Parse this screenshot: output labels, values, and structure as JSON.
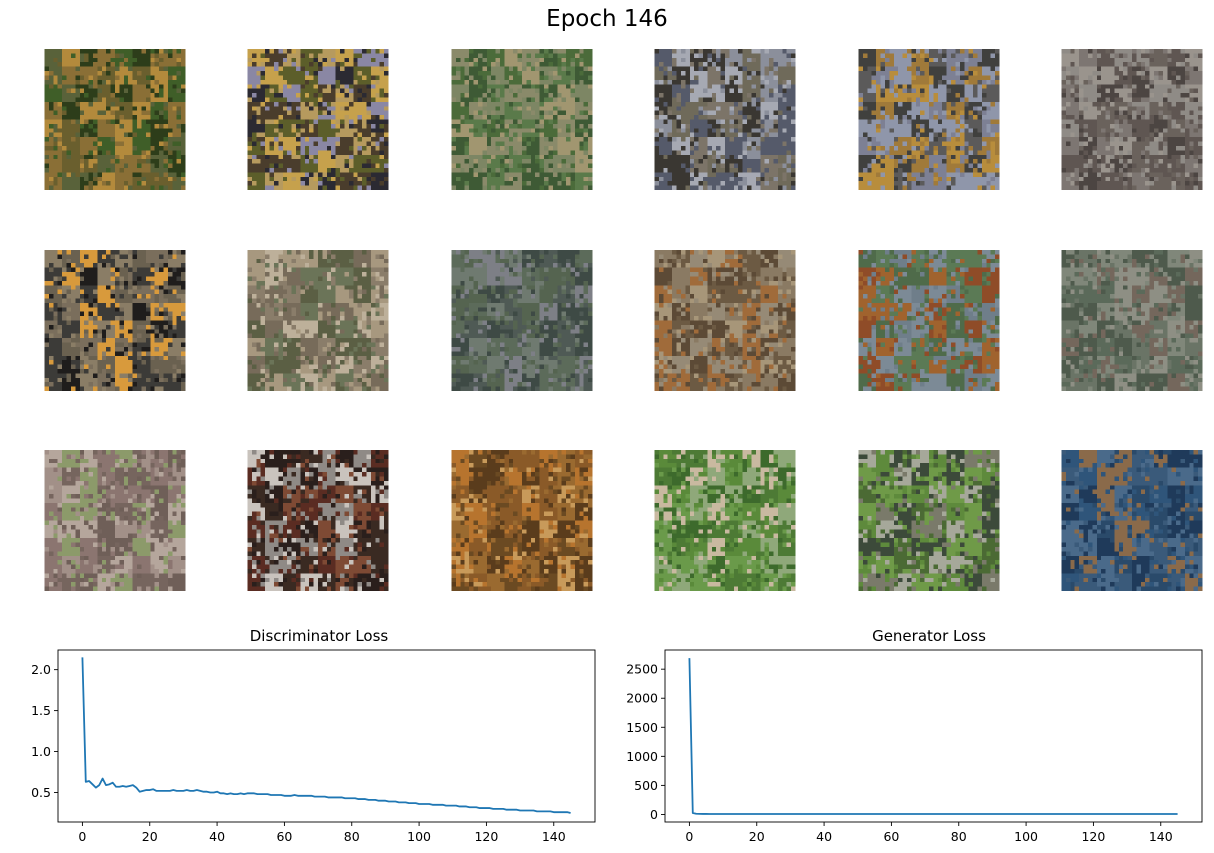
{
  "figure": {
    "title": "Epoch 146"
  },
  "samples": [
    {
      "palette": [
        "#3f5e28",
        "#6a5f2e",
        "#b38a3c",
        "#59623a",
        "#8a6f36",
        "#2d3d1a"
      ]
    },
    {
      "palette": [
        "#4a3d2c",
        "#b69a5e",
        "#c6a14c",
        "#8a87a4",
        "#5c5e2a",
        "#2b2a32"
      ]
    },
    {
      "palette": [
        "#5a7a4a",
        "#8a8a6a",
        "#4b6b3a",
        "#a19670",
        "#7d8664",
        "#3e5a35"
      ]
    },
    {
      "palette": [
        "#555a6a",
        "#8b8f9b",
        "#6f6a5a",
        "#3a3732",
        "#a6a9b3",
        "#7c7468"
      ]
    },
    {
      "palette": [
        "#7d8094",
        "#b88d3c",
        "#5b5a5a",
        "#a07a3a",
        "#8f96aa",
        "#40403e"
      ]
    },
    {
      "palette": [
        "#5f5652",
        "#7d7672",
        "#8f8b86",
        "#6a625c",
        "#9a948d",
        "#4c4542"
      ]
    },
    {
      "palette": [
        "#6a6150",
        "#d89a3c",
        "#3c3b38",
        "#8a7d66",
        "#1f1d1c",
        "#7a6e5c"
      ]
    },
    {
      "palette": [
        "#8a7d6a",
        "#6b7458",
        "#a7987f",
        "#5b5f44",
        "#776b5a",
        "#bdb09a"
      ]
    },
    {
      "palette": [
        "#4f5a55",
        "#5c6b5a",
        "#6f7a70",
        "#3e4a45",
        "#7d7f86",
        "#556450"
      ]
    },
    {
      "palette": [
        "#8a7a63",
        "#a79679",
        "#5c4a36",
        "#6c5a43",
        "#a06b3a",
        "#968a76"
      ]
    },
    {
      "palette": [
        "#6f7e8a",
        "#5b7a55",
        "#8f4c28",
        "#a0632e",
        "#7c8a96",
        "#4f6b4a"
      ]
    },
    {
      "palette": [
        "#6a7466",
        "#80877a",
        "#5b6a5a",
        "#8e8f84",
        "#4e5a4c",
        "#74675c"
      ]
    },
    {
      "palette": [
        "#8b7570",
        "#a29088",
        "#6f5f58",
        "#b5a69c",
        "#76655e",
        "#8c9a6a"
      ]
    },
    {
      "palette": [
        "#3a2a22",
        "#5a2c22",
        "#c9c3bd",
        "#7e4a34",
        "#2a1f1c",
        "#8f8a86"
      ]
    },
    {
      "palette": [
        "#8a5a28",
        "#b7742e",
        "#6b4a22",
        "#c89a5a",
        "#9a6a30",
        "#5a3c1c"
      ]
    },
    {
      "palette": [
        "#5a8a3a",
        "#4d7a35",
        "#6a9a4a",
        "#3d6a2c",
        "#8fa87a",
        "#c9b9a0"
      ]
    },
    {
      "palette": [
        "#5e8a3c",
        "#6f9a48",
        "#3c4a3a",
        "#7a7a6a",
        "#4b6a34",
        "#a6a89a"
      ]
    },
    {
      "palette": [
        "#2a4a6a",
        "#3a5a7a",
        "#1f3a5a",
        "#4a6a8a",
        "#2f557a",
        "#8a6a4a"
      ]
    }
  ],
  "chart_data": [
    {
      "type": "line",
      "title": "Discriminator Loss",
      "xlabel": "",
      "ylabel": "",
      "xlim": [
        -7.25,
        152.25
      ],
      "ylim": [
        0.14,
        2.24
      ],
      "xticks": [
        0,
        20,
        40,
        60,
        80,
        100,
        120,
        140
      ],
      "yticks": [
        0.5,
        1.0,
        1.5,
        2.0
      ],
      "ytick_labels": [
        "0.5",
        "1.0",
        "1.5",
        "2.0"
      ],
      "line_color": "#1f77b4",
      "x_start": 0,
      "values": [
        2.15,
        0.63,
        0.64,
        0.6,
        0.56,
        0.59,
        0.67,
        0.59,
        0.6,
        0.62,
        0.57,
        0.57,
        0.58,
        0.57,
        0.58,
        0.59,
        0.56,
        0.51,
        0.52,
        0.53,
        0.53,
        0.54,
        0.52,
        0.52,
        0.52,
        0.52,
        0.52,
        0.53,
        0.52,
        0.52,
        0.52,
        0.53,
        0.52,
        0.52,
        0.53,
        0.52,
        0.51,
        0.51,
        0.5,
        0.5,
        0.51,
        0.49,
        0.49,
        0.48,
        0.49,
        0.48,
        0.48,
        0.49,
        0.48,
        0.49,
        0.49,
        0.49,
        0.48,
        0.48,
        0.48,
        0.48,
        0.47,
        0.47,
        0.47,
        0.47,
        0.46,
        0.46,
        0.46,
        0.47,
        0.46,
        0.46,
        0.46,
        0.46,
        0.46,
        0.45,
        0.45,
        0.45,
        0.45,
        0.44,
        0.44,
        0.44,
        0.44,
        0.44,
        0.43,
        0.43,
        0.43,
        0.43,
        0.42,
        0.42,
        0.42,
        0.41,
        0.41,
        0.41,
        0.4,
        0.4,
        0.4,
        0.39,
        0.39,
        0.39,
        0.38,
        0.38,
        0.38,
        0.37,
        0.37,
        0.37,
        0.36,
        0.36,
        0.36,
        0.36,
        0.35,
        0.35,
        0.35,
        0.35,
        0.34,
        0.34,
        0.34,
        0.34,
        0.33,
        0.33,
        0.33,
        0.32,
        0.32,
        0.32,
        0.31,
        0.31,
        0.31,
        0.31,
        0.3,
        0.3,
        0.3,
        0.3,
        0.29,
        0.29,
        0.29,
        0.29,
        0.28,
        0.28,
        0.28,
        0.28,
        0.28,
        0.27,
        0.27,
        0.27,
        0.27,
        0.27,
        0.26,
        0.26,
        0.26,
        0.26,
        0.26,
        0.25
      ]
    },
    {
      "type": "line",
      "title": "Generator Loss",
      "xlabel": "",
      "ylabel": "",
      "xlim": [
        -7.25,
        152.25
      ],
      "ylim": [
        -130,
        2830
      ],
      "xticks": [
        0,
        20,
        40,
        60,
        80,
        100,
        120,
        140
      ],
      "yticks": [
        0,
        500,
        1000,
        1500,
        2000,
        2500
      ],
      "ytick_labels": [
        "0",
        "500",
        "1000",
        "1500",
        "2000",
        "2500"
      ],
      "line_color": "#1f77b4",
      "x_start": 0,
      "values": [
        2690,
        25,
        12,
        10,
        9,
        9,
        8,
        8,
        8,
        8,
        8,
        8,
        8,
        8,
        8,
        8,
        8,
        8,
        8,
        8,
        8,
        8,
        8,
        8,
        8,
        8,
        8,
        8,
        8,
        8,
        8,
        8,
        8,
        8,
        8,
        8,
        8,
        8,
        8,
        8,
        8,
        8,
        8,
        8,
        8,
        8,
        8,
        8,
        8,
        8,
        8,
        8,
        8,
        8,
        8,
        8,
        8,
        8,
        8,
        8,
        8,
        8,
        8,
        8,
        8,
        8,
        8,
        8,
        8,
        8,
        8,
        8,
        8,
        8,
        8,
        8,
        8,
        8,
        8,
        8,
        8,
        8,
        8,
        8,
        8,
        8,
        8,
        8,
        8,
        8,
        8,
        8,
        8,
        8,
        8,
        8,
        8,
        8,
        8,
        8,
        8,
        8,
        8,
        8,
        8,
        8,
        8,
        8,
        8,
        8,
        8,
        8,
        8,
        8,
        8,
        8,
        8,
        8,
        8,
        8,
        8,
        8,
        8,
        8,
        8,
        8,
        8,
        8,
        8,
        8,
        8,
        8,
        8,
        8,
        8,
        8,
        8,
        8,
        8,
        8,
        8,
        8,
        8,
        8,
        8,
        8
      ]
    }
  ]
}
